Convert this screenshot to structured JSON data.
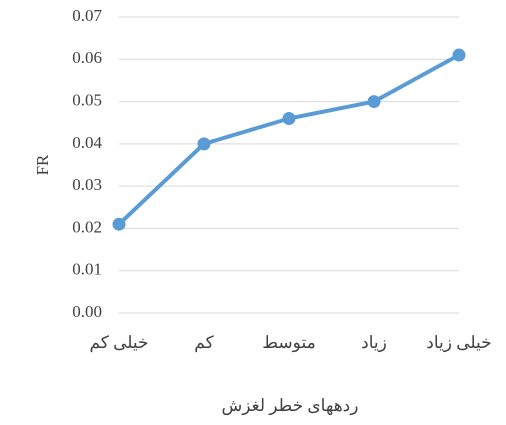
{
  "chart_data": {
    "type": "line",
    "x_label": "ردههای خطر لغزش",
    "y_label": "FR",
    "categories": [
      "خیلی کم",
      "کم",
      "متوسط",
      "زیاد",
      "خیلی زیاد"
    ],
    "series": [
      {
        "name": "FR",
        "color": "#5b9bd5",
        "values": [
          0.021,
          0.04,
          0.046,
          0.05,
          0.061
        ]
      }
    ],
    "ylim": [
      0,
      0.07
    ],
    "yticks": [
      {
        "value": 0,
        "label": "0.00"
      },
      {
        "value": 0.01,
        "label": "0.01"
      },
      {
        "value": 0.02,
        "label": "0.02"
      },
      {
        "value": 0.03,
        "label": "0.03"
      },
      {
        "value": 0.04,
        "label": "0.04"
      },
      {
        "value": 0.05,
        "label": "0.05"
      },
      {
        "value": 0.06,
        "label": "0.06"
      },
      {
        "value": 0.07,
        "label": "0.07"
      }
    ],
    "grid": true
  }
}
